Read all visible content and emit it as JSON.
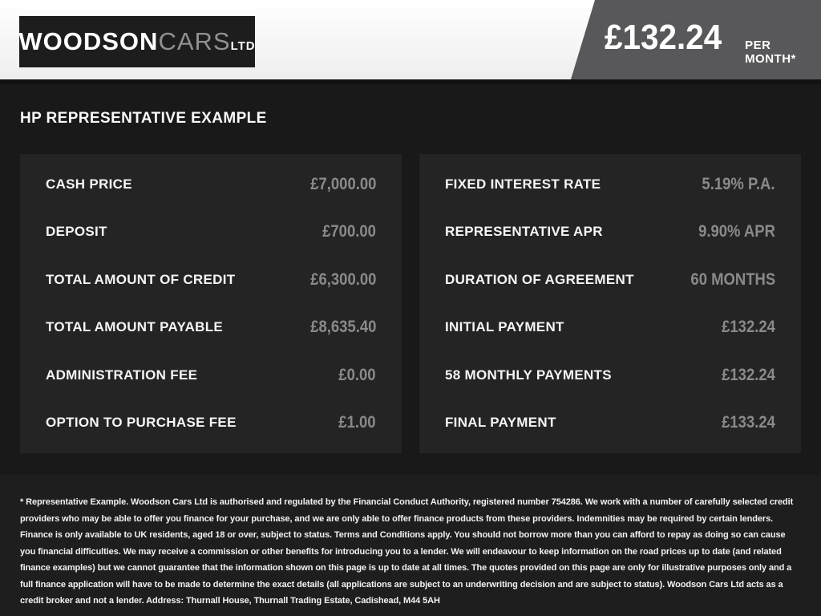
{
  "header": {
    "logo": {
      "brand_primary": "WOODSON",
      "brand_secondary": "CARS",
      "brand_suffix": "LTD"
    },
    "price": "£132.24",
    "price_caption": "PER MONTH*"
  },
  "page_title": "HP REPRESENTATIVE EXAMPLE",
  "panels": {
    "left": {
      "rows": [
        {
          "label": "CASH PRICE",
          "value": "£7,000.00"
        },
        {
          "label": "DEPOSIT",
          "value": "£700.00"
        },
        {
          "label": "TOTAL AMOUNT OF CREDIT",
          "value": "£6,300.00"
        },
        {
          "label": "TOTAL AMOUNT PAYABLE",
          "value": "£8,635.40"
        },
        {
          "label": "ADMINISTRATION FEE",
          "value": "£0.00"
        },
        {
          "label": "OPTION TO PURCHASE FEE",
          "value": "£1.00"
        }
      ]
    },
    "right": {
      "rows": [
        {
          "label": "FIXED INTEREST RATE",
          "value": "5.19% P.A."
        },
        {
          "label": "REPRESENTATIVE APR",
          "value": "9.90% APR"
        },
        {
          "label": "DURATION OF AGREEMENT",
          "value": "60 MONTHS"
        },
        {
          "label": "INITIAL PAYMENT",
          "value": "£132.24"
        },
        {
          "label": "58 MONTHLY PAYMENTS",
          "value": "£132.24"
        },
        {
          "label": "FINAL PAYMENT",
          "value": "£133.24"
        }
      ]
    }
  },
  "disclaimer": "* Representative Example. Woodson Cars Ltd is authorised and regulated by the Financial Conduct Authority, registered number 754286. We work with a number of carefully selected credit providers who may be able to offer you finance for your purchase, and we are only able to offer finance products from these providers. Indemnities may be required by certain lenders. Finance is only available to UK residents, aged 18 or over, subject to status. Terms and Conditions apply. You should not borrow more than you can afford to repay as doing so can cause you financial difficulties. We may receive a commission or other benefits for introducing you to a lender. We will endeavour to keep information on the road prices up to date (and related finance examples) but we cannot guarantee that the information shown on this page is up to date at all times. The quotes provided on this page are only for illustrative purposes only and a full finance application will have to be made to determine the exact details (all applications are subject to an underwriting decision and are subject to status). Woodson Cars Ltd acts as a credit broker and not a lender. Address: Thurnall House, Thurnall Trading Estate, Cadishead, M44 5AH",
  "colors": {
    "header_background": "#f5f5f5",
    "header_accent_block": "#58585a",
    "logo_background": "#1d1d1d",
    "body_background": "#191919",
    "panel_background": "#242424",
    "label_color": "#f5f5f5",
    "value_color": "#8a8a8a"
  }
}
